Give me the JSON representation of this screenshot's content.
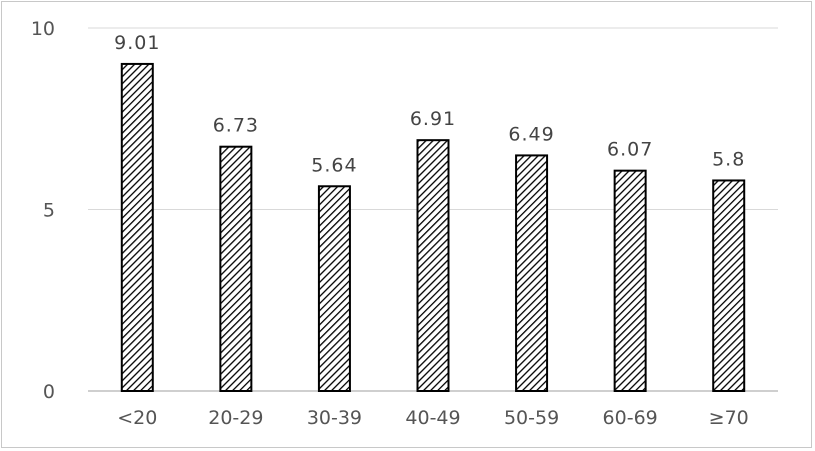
{
  "chart_data": {
    "type": "bar",
    "title": "",
    "xlabel": "",
    "ylabel": "",
    "categories": [
      "<20",
      "20-29",
      "30-39",
      "40-49",
      "50-59",
      "60-69",
      "≥70"
    ],
    "values": [
      9.01,
      6.73,
      5.64,
      6.91,
      6.49,
      6.07,
      5.8
    ],
    "value_labels": [
      "9.01",
      "6.73",
      "5.64",
      "6.91",
      "6.49",
      "6.07",
      "5.8"
    ],
    "ylim": [
      0,
      10
    ],
    "yticks": [
      0,
      5,
      10
    ],
    "ytick_labels": [
      "0",
      "5",
      "10"
    ],
    "grid": true,
    "legend": "none",
    "bar_fill": "diagonal-hatch",
    "colors": {
      "bar_stroke": "#000000",
      "hatch": "#000000",
      "grid": "#d9d9d9",
      "axis": "#bfbfbf"
    }
  }
}
